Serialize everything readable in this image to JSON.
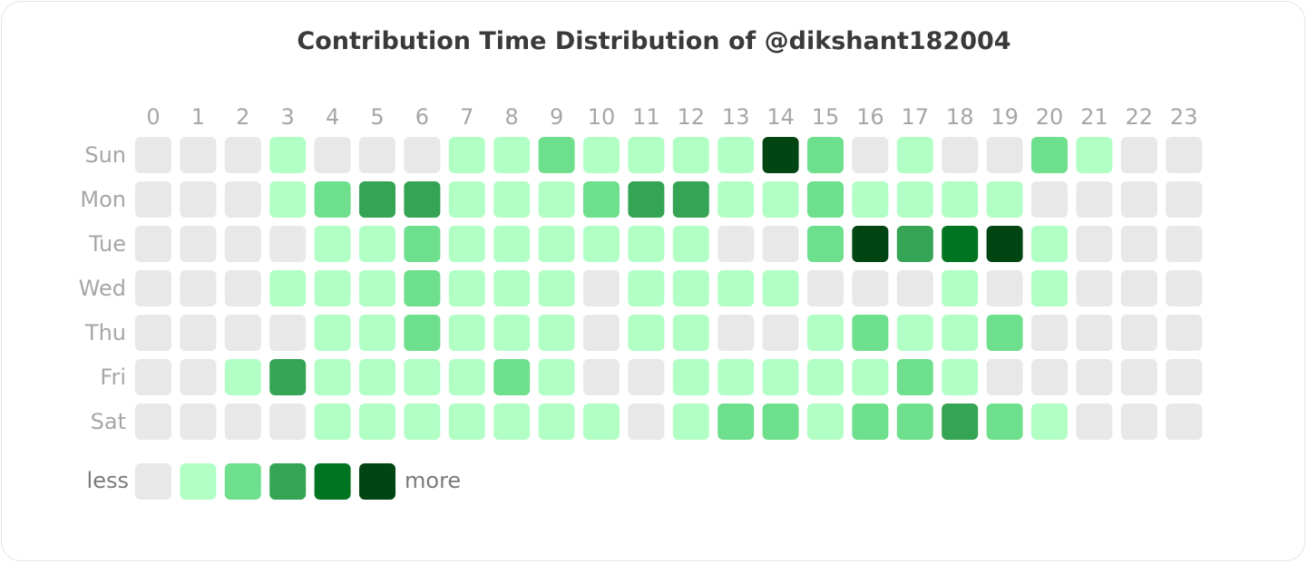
{
  "chart_data": {
    "type": "heatmap",
    "title": "Contribution Time Distribution of @dikshant182004",
    "x_labels": [
      "0",
      "1",
      "2",
      "3",
      "4",
      "5",
      "6",
      "7",
      "8",
      "9",
      "10",
      "11",
      "12",
      "13",
      "14",
      "15",
      "16",
      "17",
      "18",
      "19",
      "20",
      "21",
      "22",
      "23"
    ],
    "y_labels": [
      "Sun",
      "Mon",
      "Tue",
      "Wed",
      "Thu",
      "Fri",
      "Sat"
    ],
    "levels": [
      [
        0,
        0,
        0,
        1,
        0,
        0,
        0,
        1,
        1,
        2,
        1,
        1,
        1,
        1,
        5,
        2,
        0,
        1,
        0,
        0,
        2,
        1,
        0,
        0
      ],
      [
        0,
        0,
        0,
        1,
        2,
        3,
        3,
        1,
        1,
        1,
        2,
        3,
        3,
        1,
        1,
        2,
        1,
        1,
        1,
        1,
        0,
        0,
        0,
        0
      ],
      [
        0,
        0,
        0,
        0,
        1,
        1,
        2,
        1,
        1,
        1,
        1,
        1,
        1,
        0,
        0,
        2,
        5,
        3,
        4,
        5,
        1,
        0,
        0,
        0
      ],
      [
        0,
        0,
        0,
        1,
        1,
        1,
        2,
        1,
        1,
        1,
        0,
        1,
        1,
        1,
        1,
        0,
        0,
        0,
        1,
        0,
        1,
        0,
        0,
        0
      ],
      [
        0,
        0,
        0,
        0,
        1,
        1,
        2,
        1,
        1,
        1,
        0,
        1,
        1,
        0,
        0,
        1,
        2,
        1,
        1,
        2,
        0,
        0,
        0,
        0
      ],
      [
        0,
        0,
        1,
        3,
        1,
        1,
        1,
        1,
        2,
        1,
        0,
        0,
        1,
        1,
        1,
        1,
        1,
        2,
        1,
        0,
        0,
        0,
        0,
        0
      ],
      [
        0,
        0,
        0,
        0,
        1,
        1,
        1,
        1,
        1,
        1,
        1,
        0,
        1,
        2,
        2,
        1,
        2,
        2,
        3,
        2,
        1,
        0,
        0,
        0
      ]
    ],
    "level_colors": [
      "#e8e8e8",
      "#b2ffc5",
      "#6edf8d",
      "#35a454",
      "#007421",
      "#004512"
    ],
    "legend": {
      "less_label": "less",
      "more_label": "more"
    }
  }
}
